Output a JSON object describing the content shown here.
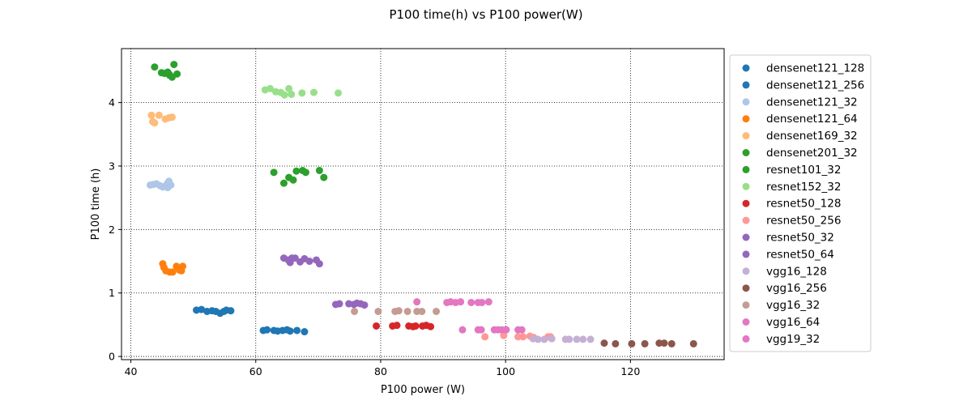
{
  "chart_data": {
    "type": "scatter",
    "title": "P100 time(h) vs P100 power(W)",
    "xlabel": "P100 power (W)",
    "ylabel": "P100 time (h)",
    "xlim": [
      38.5,
      135
    ],
    "ylim": [
      -0.05,
      4.85
    ],
    "xticks": [
      40,
      60,
      80,
      100,
      120
    ],
    "yticks": [
      0,
      1,
      2,
      3,
      4
    ],
    "grid": true,
    "grid_style": "dotted",
    "legend_position": "right-outside",
    "series": [
      {
        "name": "densenet121_128",
        "color": "#1f77b4",
        "points": [
          [
            50.5,
            0.73
          ],
          [
            51.3,
            0.74
          ],
          [
            52.2,
            0.71
          ],
          [
            53,
            0.72
          ],
          [
            53.6,
            0.71
          ],
          [
            54.3,
            0.68
          ],
          [
            54.9,
            0.71
          ],
          [
            55.3,
            0.73
          ],
          [
            56,
            0.72
          ]
        ]
      },
      {
        "name": "densenet121_256",
        "color": "#1f77b4",
        "points": [
          [
            61.2,
            0.41
          ],
          [
            61.8,
            0.42
          ],
          [
            62.9,
            0.41
          ],
          [
            63.5,
            0.4
          ],
          [
            64.3,
            0.41
          ],
          [
            65,
            0.42
          ],
          [
            65.5,
            0.4
          ],
          [
            66.6,
            0.41
          ],
          [
            67.8,
            0.39
          ]
        ]
      },
      {
        "name": "densenet121_32",
        "color": "#aec7e8",
        "points": [
          [
            43.1,
            2.7
          ],
          [
            43.6,
            2.71
          ],
          [
            44.1,
            2.72
          ],
          [
            44.7,
            2.69
          ],
          [
            45.1,
            2.67
          ],
          [
            45.8,
            2.72
          ],
          [
            46.1,
            2.76
          ],
          [
            46.4,
            2.7
          ],
          [
            45.9,
            2.66
          ]
        ]
      },
      {
        "name": "densenet121_64",
        "color": "#ff7f0e",
        "points": [
          [
            45.1,
            1.46
          ],
          [
            45.3,
            1.4
          ],
          [
            45.6,
            1.35
          ],
          [
            46.2,
            1.33
          ],
          [
            46.7,
            1.33
          ],
          [
            47.3,
            1.42
          ],
          [
            47.8,
            1.36
          ],
          [
            48.1,
            1.35
          ],
          [
            48.3,
            1.42
          ]
        ]
      },
      {
        "name": "densenet169_32",
        "color": "#ffbb78",
        "points": [
          [
            43.3,
            3.8
          ],
          [
            43.5,
            3.7
          ],
          [
            43.8,
            3.68
          ],
          [
            44.5,
            3.8
          ],
          [
            45.5,
            3.74
          ],
          [
            46.1,
            3.76
          ],
          [
            46.6,
            3.77
          ]
        ]
      },
      {
        "name": "densenet201_32",
        "color": "#2ca02c",
        "points": [
          [
            43.8,
            4.56
          ],
          [
            44.9,
            4.47
          ],
          [
            45.4,
            4.46
          ],
          [
            45.9,
            4.48
          ],
          [
            46.2,
            4.44
          ],
          [
            46.6,
            4.4
          ],
          [
            46.9,
            4.6
          ],
          [
            47.4,
            4.45
          ],
          [
            46.2,
            4.43
          ]
        ]
      },
      {
        "name": "resnet101_32",
        "color": "#2ca02c",
        "points": [
          [
            62.9,
            2.9
          ],
          [
            64.5,
            2.73
          ],
          [
            65.3,
            2.82
          ],
          [
            66,
            2.78
          ],
          [
            66.5,
            2.92
          ],
          [
            67.5,
            2.93
          ],
          [
            68,
            2.9
          ],
          [
            70.2,
            2.93
          ],
          [
            70.9,
            2.82
          ]
        ]
      },
      {
        "name": "resnet152_32",
        "color": "#98df8a",
        "points": [
          [
            61.5,
            4.2
          ],
          [
            62.3,
            4.22
          ],
          [
            63.2,
            4.17
          ],
          [
            64,
            4.16
          ],
          [
            64.6,
            4.12
          ],
          [
            65.3,
            4.22
          ],
          [
            65.7,
            4.13
          ],
          [
            67.4,
            4.15
          ],
          [
            69.3,
            4.16
          ],
          [
            73.2,
            4.15
          ]
        ]
      },
      {
        "name": "resnet50_128",
        "color": "#d62728",
        "points": [
          [
            79.3,
            0.48
          ],
          [
            81.9,
            0.48
          ],
          [
            82.6,
            0.49
          ],
          [
            84.5,
            0.48
          ],
          [
            85.2,
            0.47
          ],
          [
            85.6,
            0.48
          ],
          [
            86.7,
            0.48
          ],
          [
            87.3,
            0.49
          ],
          [
            88,
            0.47
          ]
        ]
      },
      {
        "name": "resnet50_256",
        "color": "#ff9896",
        "points": [
          [
            96.7,
            0.31
          ],
          [
            99.7,
            0.33
          ],
          [
            102,
            0.31
          ],
          [
            102.8,
            0.31
          ],
          [
            103.9,
            0.32
          ],
          [
            104.5,
            0.3
          ],
          [
            106.8,
            0.31
          ],
          [
            107.2,
            0.31
          ]
        ]
      },
      {
        "name": "resnet50_32",
        "color": "#9467bd",
        "points": [
          [
            64.5,
            1.55
          ],
          [
            65.2,
            1.52
          ],
          [
            65.8,
            1.55
          ],
          [
            66.3,
            1.55
          ],
          [
            65.5,
            1.48
          ],
          [
            67.1,
            1.49
          ],
          [
            67.8,
            1.54
          ],
          [
            68.6,
            1.5
          ],
          [
            69.7,
            1.52
          ],
          [
            70.2,
            1.46
          ]
        ]
      },
      {
        "name": "resnet50_64",
        "color": "#9467bd",
        "points": [
          [
            72.8,
            0.82
          ],
          [
            73.4,
            0.83
          ],
          [
            74.9,
            0.83
          ],
          [
            75.7,
            0.82
          ],
          [
            76.2,
            0.84
          ],
          [
            76.8,
            0.83
          ],
          [
            77.4,
            0.81
          ]
        ]
      },
      {
        "name": "vgg16_128",
        "color": "#c5b0d5",
        "points": [
          [
            104.4,
            0.28
          ],
          [
            105.2,
            0.27
          ],
          [
            106.2,
            0.27
          ],
          [
            107.4,
            0.28
          ],
          [
            109.6,
            0.27
          ],
          [
            110.2,
            0.27
          ],
          [
            111.4,
            0.27
          ],
          [
            112.4,
            0.27
          ],
          [
            113.6,
            0.27
          ]
        ]
      },
      {
        "name": "vgg16_256",
        "color": "#8c564b",
        "points": [
          [
            115.8,
            0.21
          ],
          [
            117.6,
            0.2
          ],
          [
            120.2,
            0.2
          ],
          [
            122.3,
            0.2
          ],
          [
            124.6,
            0.21
          ],
          [
            125.4,
            0.21
          ],
          [
            126.6,
            0.2
          ],
          [
            130.1,
            0.2
          ]
        ]
      },
      {
        "name": "vgg16_32",
        "color": "#c49c94",
        "points": [
          [
            75.8,
            0.71
          ],
          [
            79.6,
            0.71
          ],
          [
            82.3,
            0.71
          ],
          [
            82.9,
            0.72
          ],
          [
            84.3,
            0.71
          ],
          [
            85.8,
            0.71
          ],
          [
            86.6,
            0.71
          ],
          [
            88.9,
            0.71
          ]
        ]
      },
      {
        "name": "vgg16_64",
        "color": "#e377c2",
        "points": [
          [
            93.1,
            0.42
          ],
          [
            95.6,
            0.42
          ],
          [
            96.1,
            0.42
          ],
          [
            98.2,
            0.42
          ],
          [
            98.8,
            0.42
          ],
          [
            99.4,
            0.42
          ],
          [
            100.1,
            0.42
          ],
          [
            102,
            0.42
          ],
          [
            102.6,
            0.42
          ]
        ]
      },
      {
        "name": "vgg19_32",
        "color": "#e377c2",
        "points": [
          [
            85.8,
            0.86
          ],
          [
            90.6,
            0.85
          ],
          [
            91.2,
            0.86
          ],
          [
            92,
            0.85
          ],
          [
            92.8,
            0.86
          ],
          [
            94.5,
            0.85
          ],
          [
            95.6,
            0.85
          ],
          [
            96.2,
            0.85
          ],
          [
            97.3,
            0.86
          ]
        ]
      }
    ]
  }
}
